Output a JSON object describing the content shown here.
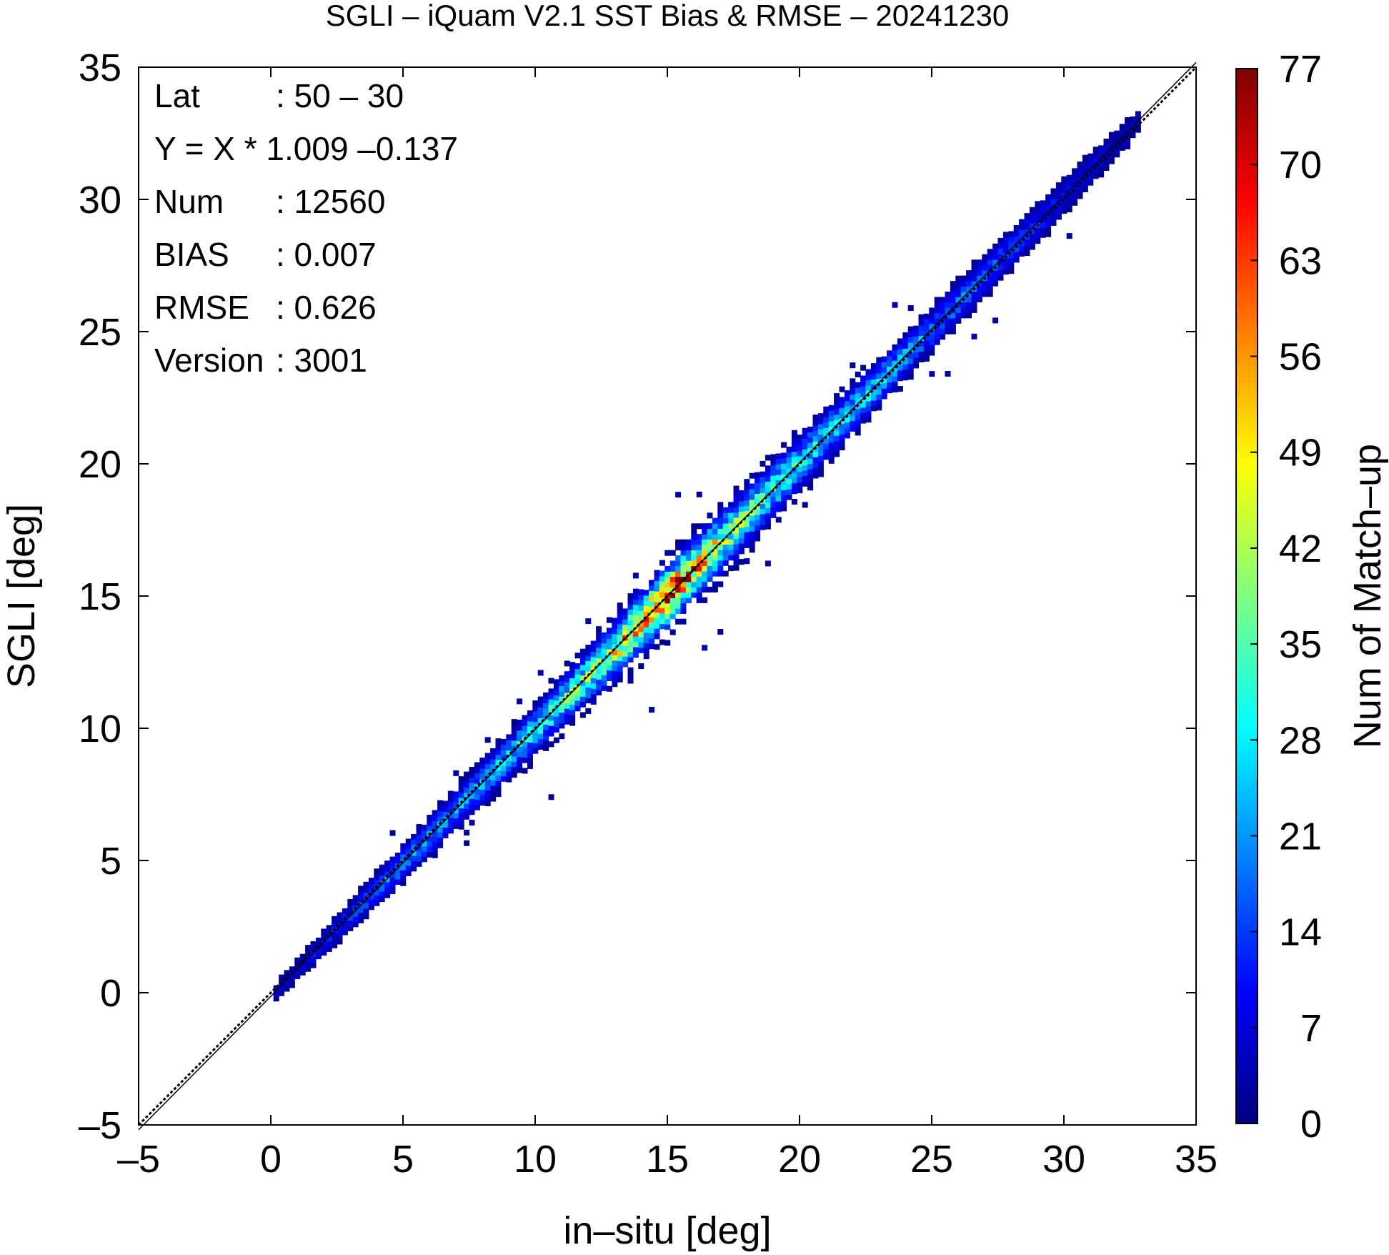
{
  "chart_data": {
    "type": "heatmap",
    "title": "SGLI – iQuam V2.1 SST Bias & RMSE  – 20241230",
    "xlabel": "in–situ [deg]",
    "ylabel": "SGLI [deg]",
    "xlim": [
      -5,
      35
    ],
    "ylim": [
      -5,
      35
    ],
    "x_ticks": [
      "–5",
      "0",
      "5",
      "10",
      "15",
      "20",
      "25",
      "30",
      "35"
    ],
    "y_ticks": [
      "–5",
      "0",
      "5",
      "10",
      "15",
      "20",
      "25",
      "30",
      "35"
    ],
    "colorbar": {
      "label": "Num of Match–up",
      "range": [
        0,
        77
      ],
      "ticks": [
        "0",
        "7",
        "14",
        "21",
        "28",
        "35",
        "42",
        "49",
        "56",
        "63",
        "70",
        "77"
      ],
      "colors": [
        "#00007f",
        "#0000ff",
        "#007fff",
        "#00ffff",
        "#7fff7f",
        "#ffff00",
        "#ff7f00",
        "#ff0000",
        "#7f0000"
      ]
    },
    "reference_line": "y = x",
    "stats": [
      {
        "key": "Lat",
        "value": ": 50 – 30"
      },
      {
        "key": "Y = X * 1.009 –0.137",
        "value": ""
      },
      {
        "key": "Num",
        "value": ": 12560"
      },
      {
        "key": "BIAS",
        "value": ": 0.007"
      },
      {
        "key": "RMSE",
        "value": ": 0.626"
      },
      {
        "key": "Version",
        "value": ": 3001"
      }
    ],
    "density_profile": [
      {
        "x": 0.5,
        "count": 6,
        "spread": 0.4
      },
      {
        "x": 2.5,
        "count": 12,
        "spread": 0.6
      },
      {
        "x": 5.0,
        "count": 22,
        "spread": 0.8
      },
      {
        "x": 7.5,
        "count": 22,
        "spread": 0.9
      },
      {
        "x": 10.0,
        "count": 30,
        "spread": 1.0
      },
      {
        "x": 12.5,
        "count": 42,
        "spread": 1.2
      },
      {
        "x": 15.0,
        "count": 77,
        "spread": 1.3
      },
      {
        "x": 17.5,
        "count": 40,
        "spread": 1.3
      },
      {
        "x": 20.0,
        "count": 30,
        "spread": 1.2
      },
      {
        "x": 22.5,
        "count": 28,
        "spread": 1.0
      },
      {
        "x": 25.0,
        "count": 20,
        "spread": 0.9
      },
      {
        "x": 27.5,
        "count": 16,
        "spread": 0.9
      },
      {
        "x": 30.0,
        "count": 10,
        "spread": 0.8
      },
      {
        "x": 32.5,
        "count": 4,
        "spread": 0.6
      }
    ]
  }
}
